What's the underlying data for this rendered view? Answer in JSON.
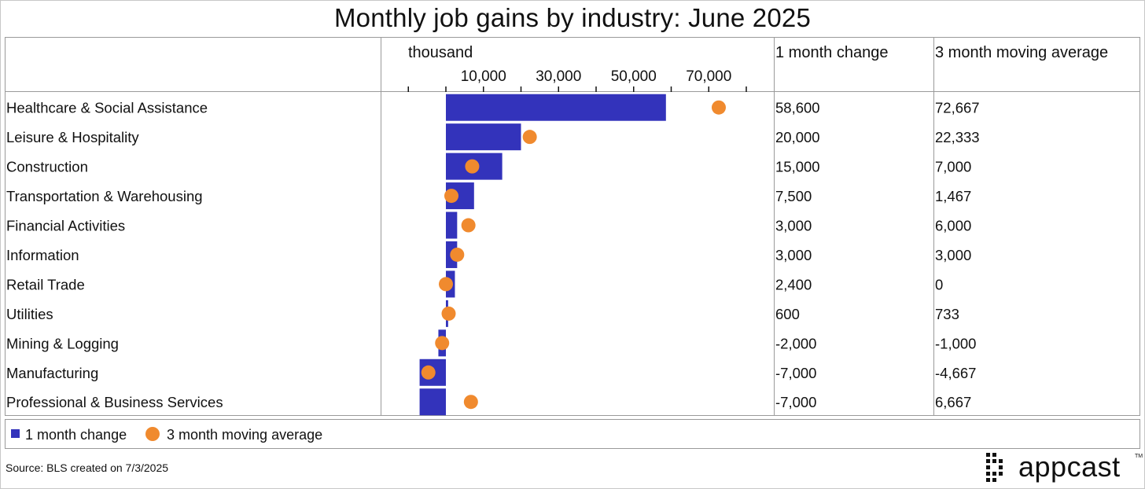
{
  "title": "Monthly job gains by industry: June 2025",
  "colors": {
    "bar": "#3333bb",
    "dot": "#f08a2e",
    "grid": "#9a9a9a"
  },
  "headers": {
    "unit": "thousand",
    "col1": "1 month change",
    "col2": "3 month moving average"
  },
  "legend": {
    "bar_label": "1 month change",
    "dot_label": "3 month moving average"
  },
  "footer": {
    "source": "Source: BLS created on 7/3/2025",
    "brand": "appcast"
  },
  "chart_data": {
    "type": "bar",
    "title": "Monthly job gains by industry: June 2025",
    "xlabel": "thousand",
    "xlim": [
      -10000,
      80000
    ],
    "xticks": [
      -10000,
      0,
      10000,
      20000,
      30000,
      40000,
      50000,
      60000,
      70000,
      80000
    ],
    "xtick_labels": [
      "10,000",
      "30,000",
      "50,000",
      "70,000"
    ],
    "xtick_label_values": [
      10000,
      30000,
      50000,
      70000
    ],
    "categories": [
      "Healthcare & Social Assistance",
      "Leisure & Hospitality",
      "Construction",
      "Transportation & Warehousing",
      "Financial Activities",
      "Information",
      "Retail Trade",
      "Utilities",
      "Mining & Logging",
      "Manufacturing",
      "Professional & Business Services"
    ],
    "series": [
      {
        "name": "1 month change",
        "kind": "bar",
        "values": [
          58600,
          20000,
          15000,
          7500,
          3000,
          3000,
          2400,
          600,
          -2000,
          -7000,
          -7000
        ]
      },
      {
        "name": "3 month moving average",
        "kind": "dot",
        "values": [
          72667,
          22333,
          7000,
          1467,
          6000,
          3000,
          0,
          733,
          -1000,
          -4667,
          6667
        ]
      }
    ],
    "table_col1": [
      "58,600",
      "20,000",
      "15,000",
      "7,500",
      "3,000",
      "3,000",
      "2,400",
      "600",
      "-2,000",
      "-7,000",
      "-7,000"
    ],
    "table_col2": [
      "72,667",
      "22,333",
      "7,000",
      "1,467",
      "6,000",
      "3,000",
      "0",
      "733",
      "-1,000",
      "-4,667",
      "6,667"
    ]
  }
}
